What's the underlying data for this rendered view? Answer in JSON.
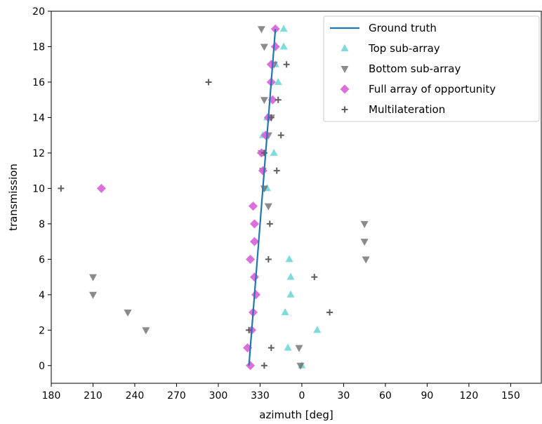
{
  "chart_data": {
    "type": "scatter",
    "xlabel": "azimuth [deg]",
    "ylabel": "transmission",
    "xlim": [
      180,
      172
    ],
    "ylim": [
      -1,
      20
    ],
    "x_ticks": [
      180,
      210,
      240,
      270,
      300,
      330,
      0,
      30,
      60,
      90,
      120,
      150
    ],
    "y_ticks": [
      0,
      2,
      4,
      6,
      8,
      10,
      12,
      14,
      16,
      18,
      20
    ],
    "grid": false,
    "legend_position": "top-right",
    "colors": {
      "ground_truth": "#1f77b4",
      "top": "#5fd3d3",
      "bottom": "#6e6e6e",
      "full": "#d85fd8",
      "multilateration": "#5e5e5e"
    },
    "series": [
      {
        "name": "Ground truth",
        "kind": "line",
        "points": [
          [
            341,
            19
          ],
          [
            322,
            0
          ]
        ]
      },
      {
        "name": "Top sub-array",
        "kind": "triangle-up",
        "points": [
          [
            0,
            0
          ],
          [
            350,
            1
          ],
          [
            371,
            2
          ],
          [
            348,
            3
          ],
          [
            352,
            4
          ],
          [
            352,
            5
          ],
          [
            351,
            6
          ],
          [
            335,
            10
          ],
          [
            340,
            12
          ],
          [
            332,
            13
          ],
          [
            335,
            14
          ],
          [
            343,
            16
          ],
          [
            341,
            17
          ],
          [
            347,
            18
          ],
          [
            347,
            19
          ]
        ]
      },
      {
        "name": "Bottom sub-array",
        "kind": "triangle-down",
        "points": [
          [
            359,
            0
          ],
          [
            358,
            1
          ],
          [
            248,
            2
          ],
          [
            235,
            3
          ],
          [
            210,
            4
          ],
          [
            210,
            5
          ],
          [
            46,
            6
          ],
          [
            45,
            7
          ],
          [
            45,
            8
          ],
          [
            336,
            9
          ],
          [
            333,
            10
          ],
          [
            332,
            11
          ],
          [
            331,
            12
          ],
          [
            336,
            13
          ],
          [
            338,
            14
          ],
          [
            333,
            15
          ],
          [
            340,
            17
          ],
          [
            333,
            18
          ],
          [
            331,
            19
          ]
        ]
      },
      {
        "name": "Full array of opportunity",
        "kind": "diamond",
        "points": [
          [
            323,
            0
          ],
          [
            321,
            1
          ],
          [
            324,
            2
          ],
          [
            325,
            3
          ],
          [
            327,
            4
          ],
          [
            326,
            5
          ],
          [
            323,
            6
          ],
          [
            326,
            7
          ],
          [
            326,
            8
          ],
          [
            325,
            9
          ],
          [
            216,
            10
          ],
          [
            332,
            11
          ],
          [
            331,
            12
          ],
          [
            334,
            13
          ],
          [
            336,
            14
          ],
          [
            339,
            15
          ],
          [
            338,
            16
          ],
          [
            338,
            17
          ],
          [
            341,
            18
          ],
          [
            341,
            19
          ]
        ]
      },
      {
        "name": "Multilateration",
        "kind": "plus",
        "points": [
          [
            333,
            0
          ],
          [
            338,
            1
          ],
          [
            322,
            2
          ],
          [
            20,
            3
          ],
          [
            9,
            5
          ],
          [
            336,
            6
          ],
          [
            337,
            8
          ],
          [
            187,
            10
          ],
          [
            342,
            11
          ],
          [
            333,
            12
          ],
          [
            345,
            13
          ],
          [
            338,
            14
          ],
          [
            343,
            15
          ],
          [
            293,
            16
          ],
          [
            349,
            17
          ]
        ]
      }
    ]
  }
}
